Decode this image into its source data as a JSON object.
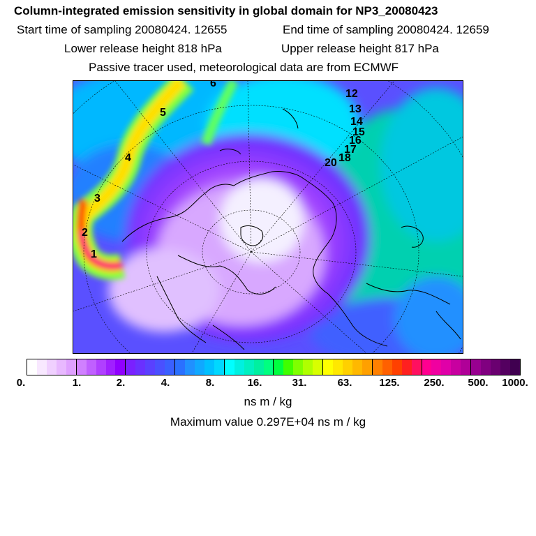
{
  "header": {
    "title": "Column-integrated emission sensitivity in global domain for NP3_20080423",
    "start_sampling": "Start time of sampling 20080424. 12655",
    "end_sampling": "End time of sampling 20080424. 12659",
    "lower_release": "Lower release height  818 hPa",
    "upper_release": "Upper release height  817 hPa",
    "tracer_note": "Passive tracer used, meteorological data are from ECMWF"
  },
  "map": {
    "plume_labels": [
      "1",
      "2",
      "3",
      "4",
      "5",
      "6",
      "12",
      "13",
      "14",
      "15",
      "16",
      "17",
      "18",
      "20"
    ]
  },
  "colorbar": {
    "colors": [
      "#ffffff",
      "#f8e8ff",
      "#f0d0ff",
      "#e8b8ff",
      "#dfa0ff",
      "#d080ff",
      "#c060ff",
      "#b040ff",
      "#a020ff",
      "#9000ff",
      "#7a20ff",
      "#6a30ff",
      "#5a40ff",
      "#4a50ff",
      "#3a60ff",
      "#2a70ff",
      "#2090ff",
      "#10a8ff",
      "#00c0ff",
      "#00d8ff",
      "#00ffff",
      "#00f0e0",
      "#00f0c0",
      "#00f0a0",
      "#00ff80",
      "#00ff40",
      "#40ff00",
      "#80ff00",
      "#b0ff00",
      "#d8ff00",
      "#ffff00",
      "#ffe800",
      "#ffd000",
      "#ffb800",
      "#ffa000",
      "#ff8000",
      "#ff6000",
      "#ff4000",
      "#ff2020",
      "#ff1060",
      "#ff0090",
      "#f000a0",
      "#e000a8",
      "#c800a0",
      "#b00098",
      "#980090",
      "#800080",
      "#6a0070",
      "#540060",
      "#400050"
    ],
    "ticks": [
      "0.",
      "1.",
      "2.",
      "4.",
      "8.",
      "16.",
      "31.",
      "63.",
      "125.",
      "250.",
      "500.",
      "1000."
    ],
    "units": "ns m / kg",
    "max_value": "Maximum value  0.297E+04 ns m / kg"
  }
}
